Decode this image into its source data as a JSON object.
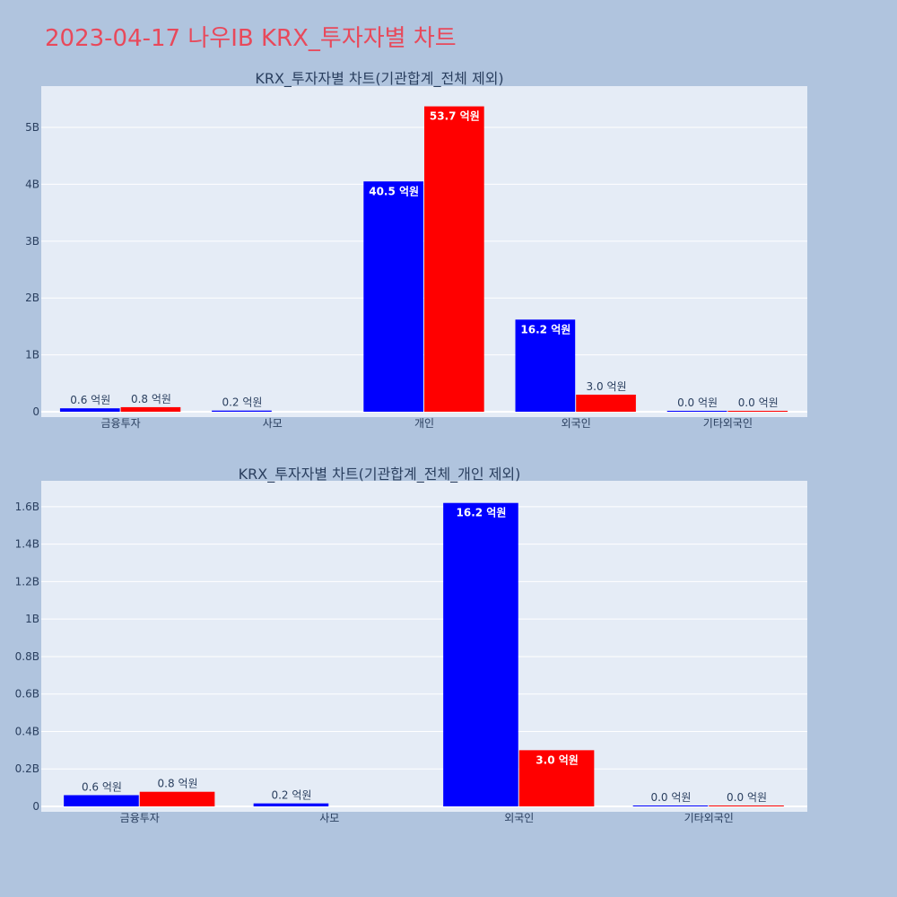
{
  "page_title": "2023-04-17 나우IB KRX_투자자별 차트",
  "colors": {
    "background": "#b0c4de",
    "plot_bg": "#e5ecf6",
    "grid": "#ffffff",
    "buy": "#0000ff",
    "sell": "#ff0000",
    "title": "#e8495b",
    "text": "#2a3f5f"
  },
  "chart_data": [
    {
      "type": "bar",
      "title": "KRX_투자자별 차트(기관합계_전체 제외)",
      "categories": [
        "금융투자",
        "사모",
        "개인",
        "외국인",
        "기타외국인"
      ],
      "series": [
        {
          "color": "#0000ff",
          "values": [
            60000000,
            20000000,
            4050000000,
            1620000000,
            3000000
          ],
          "labels": [
            "0.6 억원",
            "0.2 억원",
            "40.5 억원",
            "16.2 억원",
            "0.0 억원"
          ]
        },
        {
          "color": "#ff0000",
          "values": [
            80000000,
            0,
            5370000000,
            300000000,
            2000000
          ],
          "labels": [
            "0.8 억원",
            "",
            "53.7 억원",
            "3.0 억원",
            "0.0 억원"
          ]
        }
      ],
      "ylim": [
        0,
        5600000000
      ],
      "yticks": [
        0,
        1000000000,
        2000000000,
        3000000000,
        4000000000,
        5000000000
      ],
      "ytick_labels": [
        "0",
        "1B",
        "2B",
        "3B",
        "4B",
        "5B"
      ],
      "grid": true,
      "xlabel": "",
      "ylabel": ""
    },
    {
      "type": "bar",
      "title": "KRX_투자자별 차트(기관합계_전체_개인 제외)",
      "categories": [
        "금융투자",
        "사모",
        "외국인",
        "기타외국인"
      ],
      "series": [
        {
          "color": "#0000ff",
          "values": [
            60000000,
            16000000,
            1620000000,
            3000000
          ],
          "labels": [
            "0.6 억원",
            "0.2 억원",
            "16.2 억원",
            "0.0 억원"
          ]
        },
        {
          "color": "#ff0000",
          "values": [
            78000000,
            0,
            300000000,
            4000000
          ],
          "labels": [
            "0.8 억원",
            "",
            "3.0 억원",
            "0.0 억원"
          ]
        }
      ],
      "ylim": [
        0,
        1700000000
      ],
      "yticks": [
        0,
        200000000,
        400000000,
        600000000,
        800000000,
        1000000000,
        1200000000,
        1400000000,
        1600000000
      ],
      "ytick_labels": [
        "0",
        "0.2B",
        "0.4B",
        "0.6B",
        "0.8B",
        "1B",
        "1.2B",
        "1.4B",
        "1.6B"
      ],
      "grid": true,
      "xlabel": "",
      "ylabel": ""
    }
  ]
}
